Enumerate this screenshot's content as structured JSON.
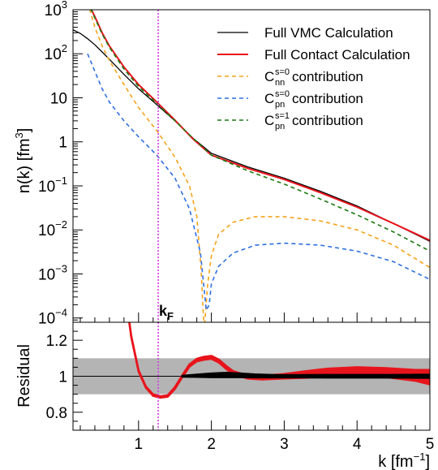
{
  "chart_data": [
    {
      "panel": "top",
      "type": "line",
      "xlim": [
        0.1,
        5.0
      ],
      "ylim": [
        8e-05,
        1000
      ],
      "yscale": "log",
      "ylabel": "n(k) [fm³]",
      "ylabel_base": "n(k) [fm",
      "ylabel_sup": "3",
      "ylabel_close": "]",
      "yticks": [
        {
          "value": 1000,
          "base": "10",
          "exp": "3"
        },
        {
          "value": 100,
          "base": "10",
          "exp": "2"
        },
        {
          "value": 10,
          "base": "10",
          "exp": ""
        },
        {
          "value": 1,
          "base": "1",
          "exp": ""
        },
        {
          "value": 0.1,
          "base": "10",
          "exp": "−1"
        },
        {
          "value": 0.01,
          "base": "10",
          "exp": "−2"
        },
        {
          "value": 0.001,
          "base": "10",
          "exp": "−3"
        },
        {
          "value": 0.0001,
          "base": "10",
          "exp": "−4"
        }
      ],
      "legend_position": "top-right",
      "grid": false,
      "series": [
        {
          "name": "Full VMC Calculation",
          "legend_main": "Full VMC Calculation",
          "legend_sup": "",
          "legend_sub": "",
          "legend_tail": "",
          "color": "#000000",
          "dash": "",
          "width": 1.3,
          "x": [
            0.1,
            0.2,
            0.3,
            0.4,
            0.5,
            0.6,
            0.8,
            1.0,
            1.25,
            1.5,
            1.75,
            2.0,
            2.5,
            3.0,
            3.5,
            4.0,
            4.5,
            5.0
          ],
          "y": [
            350,
            290,
            220,
            160,
            110,
            75,
            34,
            16,
            7.0,
            3.0,
            1.2,
            0.55,
            0.27,
            0.15,
            0.075,
            0.035,
            0.014,
            0.0055
          ]
        },
        {
          "name": "Full Contact Calculation",
          "legend_main": "Full Contact Calculation",
          "legend_sup": "",
          "legend_sub": "",
          "legend_tail": "",
          "color": "#e8141c",
          "dash": "",
          "width": 2.0,
          "x": [
            0.3,
            0.4,
            0.5,
            0.6,
            0.8,
            1.0,
            1.25,
            1.5,
            1.75,
            2.0,
            2.5,
            3.0,
            3.5,
            4.0,
            4.5,
            5.0
          ],
          "y": [
            1500,
            700,
            300,
            150,
            50,
            20,
            8.0,
            3.1,
            1.15,
            0.5,
            0.25,
            0.14,
            0.07,
            0.033,
            0.014,
            0.0058
          ]
        },
        {
          "name": "C nn s=0 contribution",
          "legend_main": "C",
          "legend_sup": "s=0",
          "legend_sub": "nn",
          "legend_tail": " contribution",
          "color": "#f5a31a",
          "dash": "5,4",
          "width": 1.6,
          "x": [
            0.3,
            0.4,
            0.5,
            0.6,
            0.8,
            1.0,
            1.25,
            1.5,
            1.7,
            1.8,
            1.86,
            1.9,
            1.95,
            2.0,
            2.1,
            2.3,
            2.6,
            3.0,
            3.5,
            4.0,
            4.5,
            5.0
          ],
          "y": [
            1500,
            400,
            150,
            70,
            20,
            6.0,
            1.8,
            0.45,
            0.1,
            0.02,
            0.0012,
            5e-05,
            0.0006,
            0.0026,
            0.008,
            0.015,
            0.02,
            0.02,
            0.016,
            0.01,
            0.0045,
            0.0014
          ]
        },
        {
          "name": "C pn s=0 contribution",
          "legend_main": "C",
          "legend_sup": "s=0",
          "legend_sub": "pn",
          "legend_tail": " contribution",
          "color": "#2e6fe0",
          "dash": "5,4",
          "width": 1.6,
          "x": [
            0.3,
            0.4,
            0.5,
            0.6,
            0.8,
            1.0,
            1.25,
            1.5,
            1.7,
            1.85,
            1.93,
            1.97,
            2.0,
            2.1,
            2.3,
            2.6,
            3.0,
            3.5,
            4.0,
            4.5,
            5.0
          ],
          "y": [
            100,
            40,
            16,
            8,
            3,
            1.3,
            0.5,
            0.15,
            0.03,
            0.003,
            0.00015,
            0.0002,
            0.0006,
            0.0015,
            0.003,
            0.0045,
            0.005,
            0.0045,
            0.0033,
            0.0019,
            0.00075
          ]
        },
        {
          "name": "C pn s=1 contribution",
          "legend_main": "C",
          "legend_sup": "s=1",
          "legend_sub": "pn",
          "legend_tail": " contribution",
          "color": "#1c7a12",
          "dash": "5,4",
          "width": 1.6,
          "x": [
            0.3,
            0.4,
            0.5,
            0.6,
            0.8,
            1.0,
            1.25,
            1.5,
            1.75,
            2.0,
            2.5,
            3.0,
            3.5,
            4.0,
            4.5,
            5.0
          ],
          "y": [
            1500,
            650,
            280,
            140,
            45,
            18,
            7.5,
            3.0,
            1.2,
            0.5,
            0.22,
            0.11,
            0.05,
            0.022,
            0.009,
            0.0033
          ]
        }
      ],
      "annotations": [
        {
          "text_main": "k",
          "text_sub": "F",
          "x": 1.27
        }
      ]
    },
    {
      "panel": "bottom",
      "type": "line",
      "xlim": [
        0.1,
        5.0
      ],
      "ylim": [
        0.7,
        1.3
      ],
      "ylabel": "Residual",
      "xlabel": "k [fm⁻¹]",
      "xlabel_base": "k [fm",
      "xlabel_sup": "−1",
      "xlabel_close": "]",
      "xticks": [
        {
          "value": 1,
          "label": "1"
        },
        {
          "value": 2,
          "label": "2"
        },
        {
          "value": 3,
          "label": "3"
        },
        {
          "value": 4,
          "label": "4"
        },
        {
          "value": 5,
          "label": "5"
        }
      ],
      "yticks": [
        {
          "value": 0.8,
          "label": "0.8"
        },
        {
          "value": 1,
          "label": "1"
        },
        {
          "value": 1.2,
          "label": "1.2"
        }
      ],
      "band": {
        "low": 0.9,
        "high": 1.1,
        "color": "#b4b4b4"
      },
      "reference_line": {
        "y": 1.0,
        "color": "#000000"
      },
      "vertical_marker": {
        "x": 1.27,
        "color": "#d63de6"
      },
      "series": [
        {
          "name": "residual",
          "color": "#e8141c",
          "x": [
            0.85,
            0.9,
            1.0,
            1.1,
            1.2,
            1.3,
            1.4,
            1.5,
            1.6,
            1.7,
            1.8,
            1.9,
            2.0,
            2.1,
            2.2,
            2.3,
            2.5,
            2.7,
            3.0,
            3.3,
            3.6,
            4.0,
            4.4,
            4.8,
            5.0
          ],
          "y": [
            1.37,
            1.22,
            1.03,
            0.94,
            0.895,
            0.885,
            0.89,
            0.935,
            1.0,
            1.06,
            1.09,
            1.1,
            1.105,
            1.085,
            1.05,
            1.02,
            0.995,
            0.992,
            1.0,
            1.01,
            1.02,
            1.025,
            1.02,
            1.005,
            0.995
          ],
          "halfwidth": [
            0.003,
            0.003,
            0.003,
            0.003,
            0.004,
            0.004,
            0.004,
            0.005,
            0.005,
            0.006,
            0.007,
            0.008,
            0.008,
            0.008,
            0.008,
            0.008,
            0.008,
            0.01,
            0.012,
            0.018,
            0.022,
            0.025,
            0.025,
            0.03,
            0.04
          ]
        },
        {
          "name": "vmc-ratio",
          "color": "#000000",
          "x": [
            1.6,
            1.8,
            2.0,
            2.2,
            2.4,
            2.6,
            2.9,
            3.2,
            3.6,
            4.0,
            4.4,
            4.8,
            5.0
          ],
          "y": [
            1.0,
            1.003,
            1.005,
            1.007,
            1.005,
            1.002,
            1.0,
            1.0,
            1.0,
            1.0,
            1.0,
            1.0,
            1.0
          ],
          "halfwidth": [
            0.002,
            0.006,
            0.01,
            0.012,
            0.01,
            0.008,
            0.006,
            0.006,
            0.007,
            0.007,
            0.007,
            0.008,
            0.008
          ]
        }
      ]
    }
  ]
}
